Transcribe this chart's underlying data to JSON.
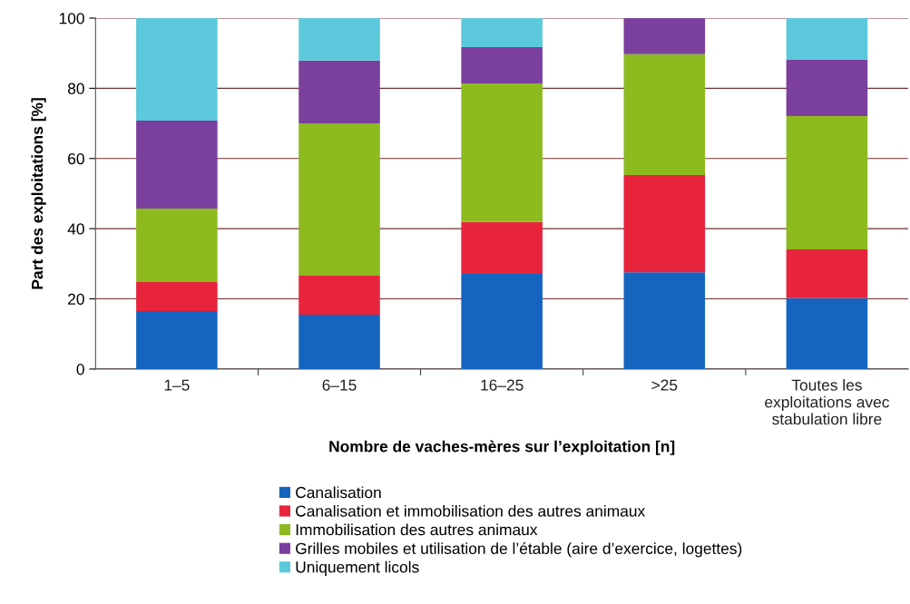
{
  "chart_data": {
    "type": "bar",
    "stacked": true,
    "xlabel": "Nombre de vaches-mères sur l’exploitation [n]",
    "ylabel": "Part des exploitations [%]",
    "categories": [
      "1–5",
      "6–15",
      "16–25",
      ">25",
      "Toutes les\nexploitations avec\nstabulation libre"
    ],
    "series": [
      {
        "name": "Canalisation",
        "color": "#1565c0",
        "values": [
          16.5,
          15.5,
          27.1,
          27.6,
          20.2
        ]
      },
      {
        "name": "Canalisation et immobilisation des autres animaux",
        "color": "#e8243c",
        "values": [
          8.3,
          11.1,
          14.8,
          27.7,
          13.9
        ]
      },
      {
        "name": "Immobilisation des autres animaux",
        "color": "#8cba1f",
        "values": [
          20.9,
          43.4,
          39.5,
          34.4,
          38.0
        ]
      },
      {
        "name": "Grilles mobiles et utilisation de l’étable (aire d’exercice, logettes)",
        "color": "#7b3f9e",
        "values": [
          25.1,
          17.9,
          10.3,
          10.3,
          16.0
        ]
      },
      {
        "name": "Uniquement licols",
        "color": "#5bc8dc",
        "values": [
          29.2,
          12.1,
          8.3,
          0,
          11.9
        ]
      }
    ],
    "ylim": [
      0,
      100
    ],
    "yticks": [
      0,
      20,
      40,
      60,
      80,
      100
    ],
    "grid": "y",
    "legend": "bottom"
  }
}
